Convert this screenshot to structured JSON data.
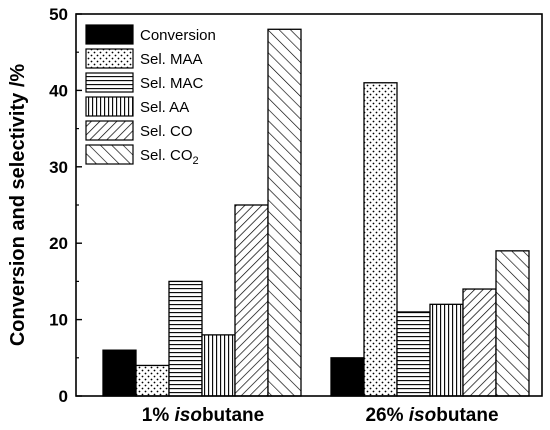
{
  "chart_data": {
    "type": "bar",
    "ylabel": "Conversion and selectivity /%",
    "ylim": [
      0,
      50
    ],
    "yticks": [
      0,
      10,
      20,
      30,
      40,
      50
    ],
    "categories": [
      {
        "pre": "1% ",
        "italic": "iso",
        "post": "butane"
      },
      {
        "pre": "26% ",
        "italic": "iso",
        "post": "butane"
      }
    ],
    "series": [
      {
        "name": "Conversion",
        "label_main": "Conversion",
        "label_sub": "",
        "pattern": "solid",
        "values": [
          6,
          5
        ]
      },
      {
        "name": "Sel. MAA",
        "label_main": "Sel. MAA",
        "label_sub": "",
        "pattern": "dots",
        "values": [
          4,
          41
        ]
      },
      {
        "name": "Sel. MAC",
        "label_main": "Sel. MAC",
        "label_sub": "",
        "pattern": "horizontal",
        "values": [
          15,
          11
        ]
      },
      {
        "name": "Sel. AA",
        "label_main": "Sel. AA",
        "label_sub": "",
        "pattern": "vertical",
        "values": [
          8,
          12
        ]
      },
      {
        "name": "Sel. CO",
        "label_main": "Sel. CO",
        "label_sub": "",
        "pattern": "diag-down",
        "values": [
          25,
          14
        ]
      },
      {
        "name": "Sel. CO2",
        "label_main": "Sel. CO",
        "label_sub": "2",
        "pattern": "diag-up",
        "values": [
          48,
          19
        ]
      }
    ],
    "legend_position": "top-left",
    "grid": false,
    "colors": {
      "ink": "#000000",
      "fill": "#ffffff"
    }
  }
}
